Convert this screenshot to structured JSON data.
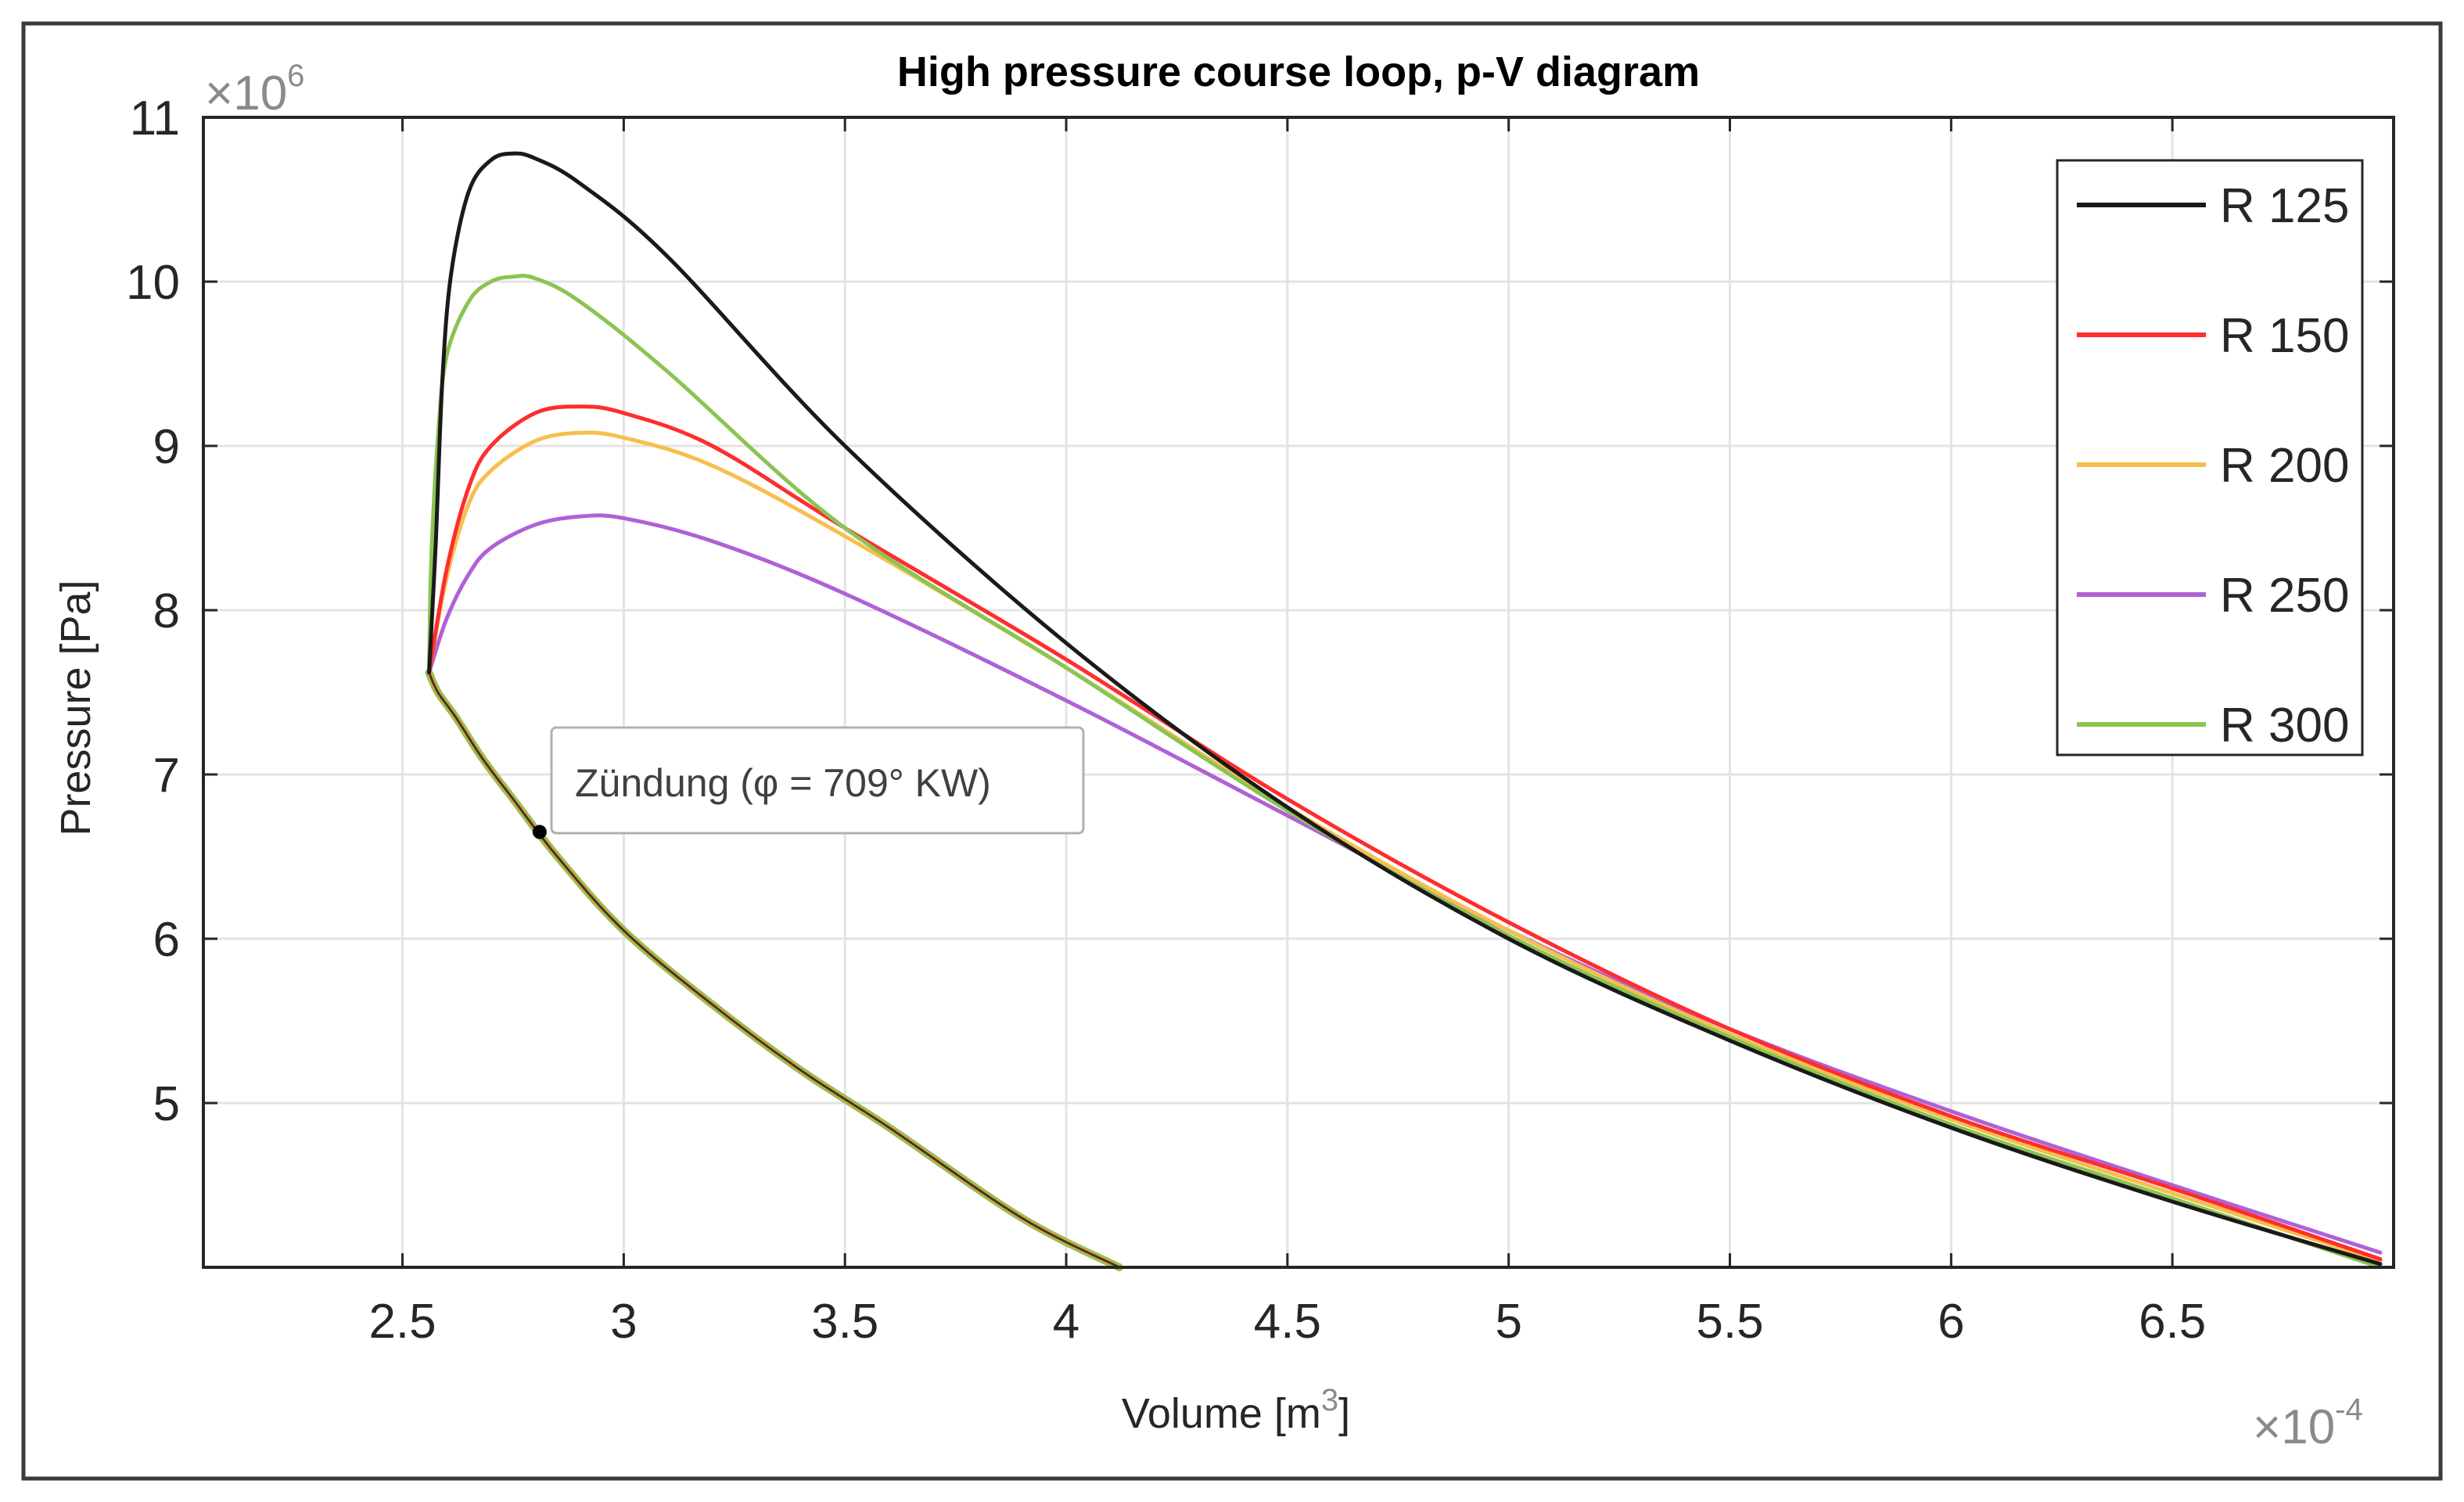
{
  "chart_data": {
    "type": "line",
    "title": "High pressure course loop, p-V diagram",
    "xlabel": {
      "base": "Volume [m",
      "sup": "3",
      "end": "]"
    },
    "ylabel": "Pressure [Pa]",
    "x_exponent": {
      "prefix": "×10",
      "power": "-4"
    },
    "y_exponent": {
      "prefix": "×10",
      "power": "6"
    },
    "xlim": [
      2.05,
      7.0
    ],
    "ylim": [
      4.0,
      11.0
    ],
    "xticks": [
      2.5,
      3,
      3.5,
      4,
      4.5,
      5,
      5.5,
      6,
      6.5
    ],
    "xtick_labels": [
      "2.5",
      "3",
      "3.5",
      "4",
      "4.5",
      "5",
      "5.5",
      "6",
      "6.5"
    ],
    "yticks": [
      5,
      6,
      7,
      8,
      9,
      10,
      11
    ],
    "ytick_labels": [
      "5",
      "6",
      "7",
      "8",
      "9",
      "10",
      "11"
    ],
    "grid": true,
    "legend_position": "top-right",
    "compression": {
      "x": [
        4.12,
        3.9,
        3.6,
        3.4,
        3.2,
        3.0,
        2.85,
        2.75,
        2.68,
        2.62,
        2.58,
        2.56
      ],
      "y": [
        4.0,
        4.3,
        4.85,
        5.2,
        5.6,
        6.05,
        6.5,
        6.85,
        7.1,
        7.35,
        7.5,
        7.62
      ]
    },
    "series": [
      {
        "name": "R 125",
        "color": "#1a1a1a",
        "x": [
          2.56,
          2.575,
          2.59,
          2.61,
          2.65,
          2.7,
          2.75,
          2.8,
          2.9,
          3.1,
          3.5,
          4.0,
          4.5,
          5.0,
          5.5,
          6.0,
          6.5,
          6.97
        ],
        "y": [
          7.62,
          8.4,
          9.4,
          10.05,
          10.55,
          10.74,
          10.78,
          10.75,
          10.6,
          10.15,
          9.0,
          7.8,
          6.8,
          6.0,
          5.38,
          4.85,
          4.4,
          4.02
        ]
      },
      {
        "name": "R 150",
        "color": "#ff2d2d",
        "x": [
          2.56,
          2.6,
          2.65,
          2.7,
          2.8,
          2.9,
          3.0,
          3.2,
          3.5,
          4.0,
          4.5,
          5.0,
          5.5,
          6.0,
          6.5,
          6.97
        ],
        "y": [
          7.62,
          8.25,
          8.75,
          9.0,
          9.2,
          9.24,
          9.2,
          9.0,
          8.5,
          7.7,
          6.85,
          6.1,
          5.45,
          4.92,
          4.48,
          4.05
        ]
      },
      {
        "name": "R 200",
        "color": "#f6bf4c",
        "x": [
          2.56,
          2.6,
          2.65,
          2.7,
          2.8,
          2.9,
          3.0,
          3.2,
          3.5,
          4.0,
          4.5,
          5.0,
          5.5,
          6.0,
          6.5,
          6.97
        ],
        "y": [
          7.62,
          8.2,
          8.65,
          8.85,
          9.03,
          9.08,
          9.05,
          8.88,
          8.45,
          7.65,
          6.8,
          6.05,
          5.42,
          4.9,
          4.45,
          4.04
        ]
      },
      {
        "name": "R 250",
        "color": "#b061d6",
        "x": [
          2.56,
          2.6,
          2.65,
          2.7,
          2.8,
          2.9,
          3.0,
          3.2,
          3.5,
          4.0,
          4.5,
          5.0,
          5.5,
          6.0,
          6.5,
          6.97
        ],
        "y": [
          7.62,
          7.95,
          8.22,
          8.38,
          8.52,
          8.57,
          8.56,
          8.42,
          8.1,
          7.45,
          6.75,
          6.05,
          5.45,
          4.95,
          4.5,
          4.09
        ]
      },
      {
        "name": "R 300",
        "color": "#8ac452",
        "x": [
          2.56,
          2.565,
          2.58,
          2.6,
          2.65,
          2.7,
          2.75,
          2.8,
          2.9,
          3.1,
          3.5,
          4.0,
          4.5,
          5.0,
          5.5,
          6.0,
          6.5,
          6.97
        ],
        "y": [
          7.62,
          8.3,
          9.05,
          9.55,
          9.88,
          10.0,
          10.03,
          10.02,
          9.88,
          9.45,
          8.5,
          7.65,
          6.78,
          6.02,
          5.4,
          4.87,
          4.42,
          4.0
        ]
      }
    ],
    "annotation": {
      "label": "Zündung (φ = 709° KW)",
      "x": 2.81,
      "y": 6.65
    }
  }
}
